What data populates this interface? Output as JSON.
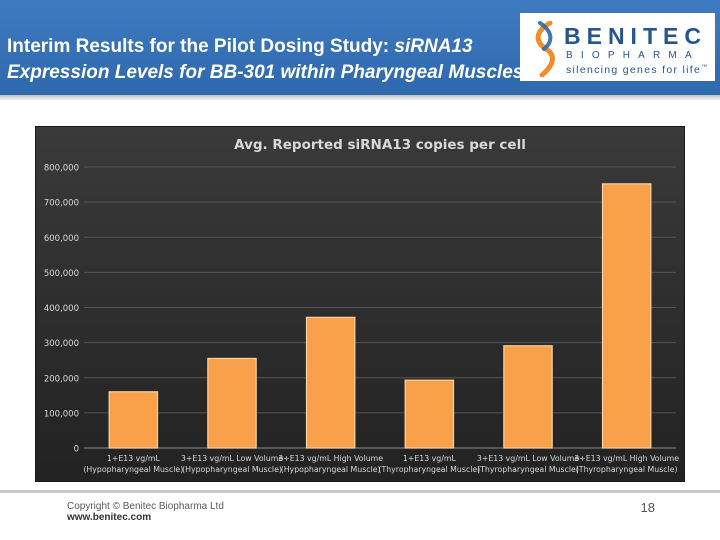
{
  "slide": {
    "title_line1_plain": "Interim Results for the Pilot Dosing Study: ",
    "title_line1_italic": "siRNA13",
    "title_line2": "Expression Levels for BB-301 within Pharyngeal Muscles",
    "page_number": "18"
  },
  "logo": {
    "name": "BENITEC",
    "sub": "BIOPHARMA",
    "tagline": "silencing genes for life",
    "tm": "™",
    "colors": {
      "text": "#27558f",
      "accent_orange": "#f28c28",
      "accent_blue": "#2e68ad"
    }
  },
  "footer": {
    "copyright": "Copyright © Benitec Biopharma Ltd",
    "website": "www.benitec.com"
  },
  "colors": {
    "header_bg": "#3471b7",
    "chart_bg": "#2e2e2e",
    "bar_fill": "#f9a04a",
    "bar_edge": "#fcd2a4",
    "text_light": "#d9d9d9"
  },
  "chart_data": {
    "type": "bar",
    "title": "Avg. Reported siRNA13 copies per cell",
    "xlabel": "",
    "ylabel": "",
    "ylim": [
      0,
      800000
    ],
    "yticks": [
      0,
      100000,
      200000,
      300000,
      400000,
      500000,
      600000,
      700000,
      800000
    ],
    "ytick_labels": [
      "0",
      "100,000",
      "200,000",
      "300,000",
      "400,000",
      "500,000",
      "600,000",
      "700,000",
      "800,000"
    ],
    "grid": true,
    "legend": "none",
    "categories": [
      [
        "1+E13 vg/mL",
        "(Hypopharyngeal Muscle)"
      ],
      [
        "3+E13 vg/mL Low Volume",
        "(Hypopharyngeal Muscle)"
      ],
      [
        "3+E13 vg/mL High Volume",
        "(Hypopharyngeal Muscle)"
      ],
      [
        "1+E13 vg/mL",
        "(Thyropharyngeal Muscle)"
      ],
      [
        "3+E13 vg/mL Low Volume",
        "(Thyropharyngeal Muscle)"
      ],
      [
        "3+E13 vg/mL High Volume",
        "(Thyropharyngeal Muscle)"
      ]
    ],
    "values": [
      160000,
      255000,
      372000,
      193000,
      291000,
      752000
    ]
  }
}
